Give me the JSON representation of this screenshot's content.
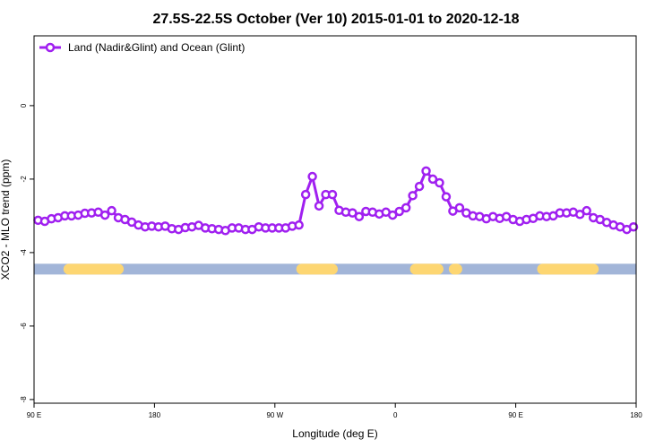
{
  "chart_data": {
    "type": "line",
    "title": "27.5S-22.5S October (Ver 10)   2015-01-01 to 2020-12-18",
    "xlabel": "Longitude (deg E)",
    "ylabel": "XCO2 - MLO trend (ppm)",
    "x_ticks": [
      {
        "value": 90,
        "label": "90 E"
      },
      {
        "value": 180,
        "label": "180"
      },
      {
        "value": 270,
        "label": "90 W"
      },
      {
        "value": 360,
        "label": "0"
      },
      {
        "value": 450,
        "label": "90 E"
      },
      {
        "value": 540,
        "label": "180"
      }
    ],
    "y_ticks": [
      0,
      -2,
      -4,
      -6,
      -8
    ],
    "xlim": [
      90,
      540
    ],
    "ylim": [
      -8.1,
      1.9
    ],
    "grid": false,
    "legend_position": "top-left",
    "series": [
      {
        "name": "Land (Nadir&Glint) and Ocean (Glint)",
        "color": "#a020f0",
        "x": [
          93,
          98,
          103,
          108,
          113,
          118,
          123,
          128,
          133,
          138,
          143,
          148,
          153,
          158,
          163,
          168,
          173,
          178,
          183,
          188,
          193,
          198,
          203,
          208,
          213,
          218,
          223,
          228,
          233,
          238,
          243,
          248,
          253,
          258,
          263,
          268,
          273,
          278,
          283,
          288,
          293,
          298,
          303,
          308,
          313,
          318,
          323,
          328,
          333,
          338,
          343,
          348,
          353,
          358,
          363,
          368,
          373,
          378,
          383,
          388,
          393,
          398,
          403,
          408,
          413,
          418,
          423,
          428,
          433,
          438,
          443,
          448,
          453,
          458,
          463,
          468,
          473,
          478,
          483,
          488,
          493,
          498,
          503,
          508,
          513,
          518,
          523,
          528,
          533,
          538
        ],
        "y": [
          -3.12,
          -3.15,
          -3.08,
          -3.05,
          -3.0,
          -3.0,
          -2.98,
          -2.93,
          -2.92,
          -2.9,
          -2.98,
          -2.86,
          -3.05,
          -3.1,
          -3.17,
          -3.25,
          -3.3,
          -3.28,
          -3.3,
          -3.28,
          -3.35,
          -3.37,
          -3.32,
          -3.3,
          -3.26,
          -3.33,
          -3.35,
          -3.37,
          -3.4,
          -3.33,
          -3.33,
          -3.37,
          -3.37,
          -3.3,
          -3.33,
          -3.33,
          -3.33,
          -3.33,
          -3.28,
          -3.25,
          -2.42,
          -1.93,
          -2.73,
          -2.42,
          -2.42,
          -2.85,
          -2.9,
          -2.92,
          -3.02,
          -2.88,
          -2.9,
          -2.95,
          -2.9,
          -2.98,
          -2.88,
          -2.78,
          -2.45,
          -2.2,
          -1.78,
          -2.0,
          -2.1,
          -2.48,
          -2.87,
          -2.78,
          -2.92,
          -3.0,
          -3.02,
          -3.08,
          -3.02,
          -3.07,
          -3.02,
          -3.1,
          -3.15,
          -3.1,
          -3.07,
          -3.0,
          -3.02,
          -3.0,
          -2.92,
          -2.92,
          -2.9,
          -2.96,
          -2.86,
          -3.05,
          -3.1,
          -3.18,
          -3.25,
          -3.3,
          -3.37,
          -3.3
        ]
      }
    ],
    "surface_band": {
      "y": -4.45,
      "ocean_color": "#a2b5d8",
      "land_color": "#fdd672",
      "land_segments": [
        [
          116,
          153
        ],
        [
          290,
          313
        ],
        [
          375,
          392
        ],
        [
          404,
          406
        ],
        [
          470,
          508
        ]
      ]
    }
  }
}
